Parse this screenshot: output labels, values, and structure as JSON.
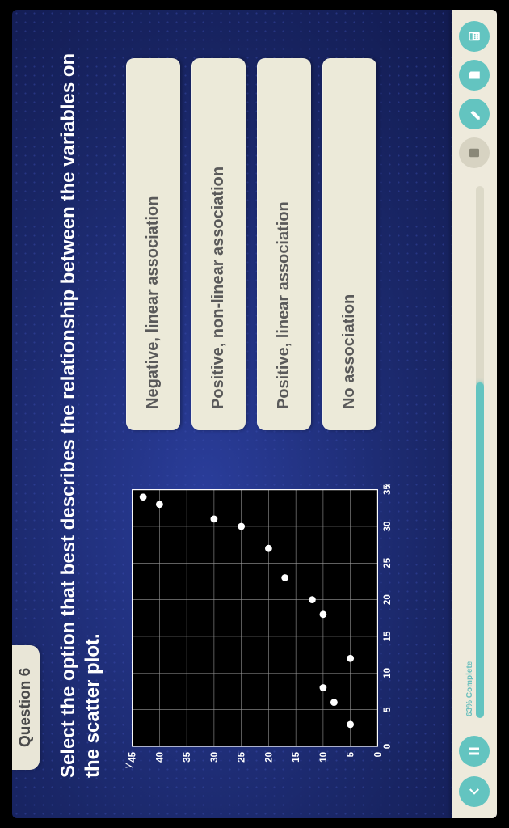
{
  "header": {
    "question_label": "Question 6"
  },
  "prompt": "Select the option that best describes the relationship between the variables on the scatter plot.",
  "options": [
    "Negative, linear association",
    "Positive, non-linear association",
    "Positive, linear association",
    "No association"
  ],
  "chart": {
    "type": "scatter",
    "x_label": "x",
    "y_label": "y",
    "xmin": 0,
    "xmax": 35,
    "xtick_step": 5,
    "ymin": 0,
    "ymax": 45,
    "ytick_step": 5,
    "x_ticks": [
      0,
      5,
      10,
      15,
      20,
      25,
      30,
      35
    ],
    "y_ticks": [
      0,
      5,
      10,
      15,
      20,
      25,
      30,
      35,
      40,
      45
    ],
    "tick_fontsize": 12,
    "background_color": "#000000",
    "grid_color": "#9a9a9a",
    "axis_color": "#ffffff",
    "tick_label_color": "#ffffff",
    "point_color": "#ffffff",
    "point_radius": 4.5,
    "points": [
      {
        "x": 3,
        "y": 5
      },
      {
        "x": 6,
        "y": 8
      },
      {
        "x": 8,
        "y": 10
      },
      {
        "x": 12,
        "y": 5
      },
      {
        "x": 18,
        "y": 10
      },
      {
        "x": 20,
        "y": 12
      },
      {
        "x": 23,
        "y": 17
      },
      {
        "x": 27,
        "y": 20
      },
      {
        "x": 30,
        "y": 25
      },
      {
        "x": 31,
        "y": 30
      },
      {
        "x": 33,
        "y": 40
      },
      {
        "x": 34,
        "y": 43
      }
    ]
  },
  "bottombar": {
    "progress_text": "63% Complete",
    "progress_pct": 63,
    "accent_color": "#63c4c0",
    "track_color": "#dcd9c8",
    "bar_bg": "#eeeadc"
  }
}
